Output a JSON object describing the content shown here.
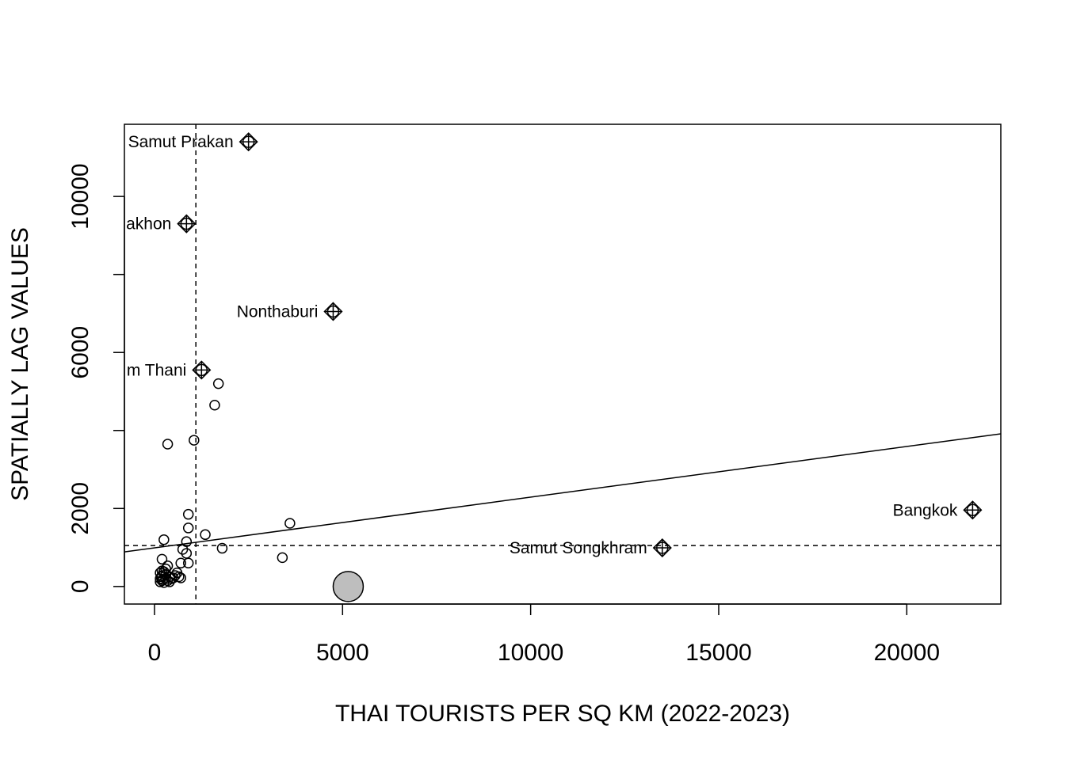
{
  "chart_data": {
    "type": "scatter",
    "title": "",
    "xlabel": "THAI TOURISTS PER SQ KM (2022-2023)",
    "ylabel": "SPATIALLY LAG VALUES",
    "xlim": [
      -800,
      22500
    ],
    "ylim": [
      -450,
      11850
    ],
    "x_ticks": [
      0,
      5000,
      10000,
      15000,
      20000
    ],
    "y_ticks": [
      0,
      2000,
      6000,
      10000
    ],
    "x_tick_labels": [
      "0",
      "5000",
      "10000",
      "15000",
      "20000"
    ],
    "y_tick_labels": [
      "0",
      "2000",
      "6000",
      "10000"
    ],
    "mean_x": 1100,
    "mean_y": 1050,
    "regression": {
      "intercept": 990,
      "slope": 0.13
    },
    "influential_points": [
      {
        "label": "Samut Prakan",
        "x": 2500,
        "y": 11400
      },
      {
        "label": "akhon",
        "x": 850,
        "y": 9300
      },
      {
        "label": "Nonthaburi",
        "x": 4750,
        "y": 7050
      },
      {
        "label": "m Thani",
        "x": 1250,
        "y": 5550
      },
      {
        "label": "Bangkok",
        "x": 21750,
        "y": 1960
      },
      {
        "label": "Samut Songkhram",
        "x": 13500,
        "y": 990
      }
    ],
    "points": [
      [
        1700,
        5200
      ],
      [
        1600,
        4650
      ],
      [
        350,
        3650
      ],
      [
        1050,
        3750
      ],
      [
        900,
        1850
      ],
      [
        900,
        1500
      ],
      [
        850,
        1150
      ],
      [
        250,
        1200
      ],
      [
        1350,
        1330
      ],
      [
        3600,
        1620
      ],
      [
        1800,
        980
      ],
      [
        3400,
        740
      ],
      [
        750,
        950
      ],
      [
        850,
        850
      ],
      [
        700,
        600
      ],
      [
        900,
        600
      ],
      [
        200,
        700
      ],
      [
        350,
        530
      ],
      [
        300,
        450
      ],
      [
        600,
        350
      ],
      [
        650,
        250
      ],
      [
        450,
        200
      ],
      [
        400,
        250
      ],
      [
        300,
        300
      ],
      [
        200,
        400
      ],
      [
        150,
        350
      ],
      [
        150,
        200
      ],
      [
        200,
        150
      ],
      [
        250,
        100
      ],
      [
        350,
        150
      ],
      [
        400,
        120
      ],
      [
        500,
        220
      ],
      [
        550,
        280
      ],
      [
        180,
        250
      ],
      [
        220,
        180
      ],
      [
        300,
        200
      ],
      [
        150,
        120
      ],
      [
        200,
        280
      ],
      [
        250,
        380
      ],
      [
        700,
        220
      ]
    ],
    "highlighted_point": {
      "x": 5150,
      "y": 0
    },
    "grid": false,
    "legend": "none",
    "colors": {
      "highlight_fill": "#bebebe",
      "stroke": "#000000"
    }
  }
}
